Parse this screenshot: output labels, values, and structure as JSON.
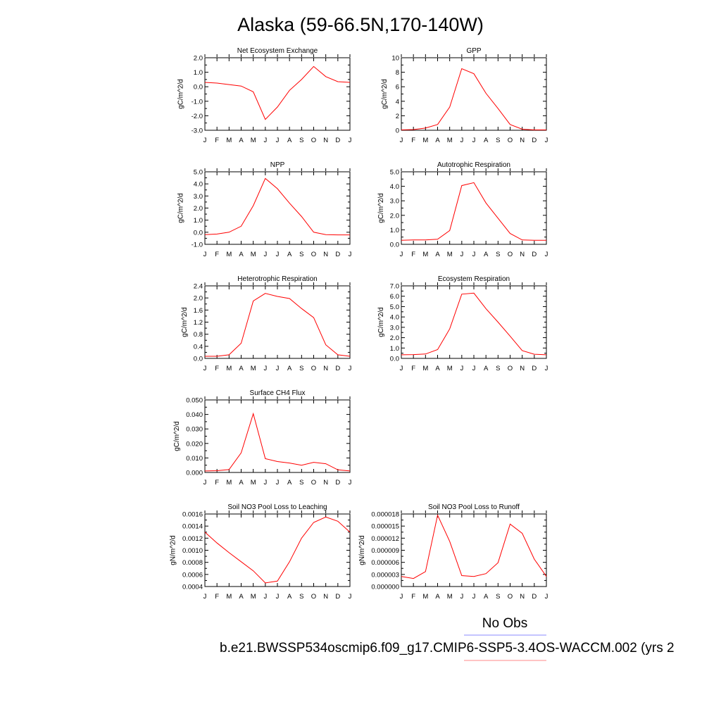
{
  "figure": {
    "title": "Alaska (59-66.5N,170-140W)",
    "legend": {
      "obs_label": "No Obs",
      "obs_color": "#8888ff",
      "case_label": "b.e21.BWSSP534oscmip6.f09_g17.CMIP6-SSP5-3.4OS-WACCM.002 (yrs 2",
      "case_color": "#ff8888"
    },
    "series_color": "#ff0000"
  },
  "chart_data": [
    {
      "type": "line",
      "title": "Net Ecosystem Exchange",
      "ylabel": "gC/m^2/d",
      "x": [
        "J",
        "F",
        "M",
        "A",
        "M",
        "J",
        "J",
        "A",
        "S",
        "O",
        "N",
        "D",
        "J"
      ],
      "values": [
        0.3,
        0.25,
        0.15,
        0.05,
        -0.35,
        -2.25,
        -1.4,
        -0.25,
        0.5,
        1.4,
        0.7,
        0.35,
        0.3
      ],
      "ylim": [
        -3.0,
        2.0
      ],
      "yticks": [
        "2.0",
        "1.0",
        "0.0",
        "-1.0",
        "-2.0",
        "-3.0"
      ]
    },
    {
      "type": "line",
      "title": "GPP",
      "ylabel": "gC/m^2/d",
      "x": [
        "J",
        "F",
        "M",
        "A",
        "M",
        "J",
        "J",
        "A",
        "S",
        "O",
        "N",
        "D",
        "J"
      ],
      "values": [
        0.05,
        0.1,
        0.3,
        0.8,
        3.2,
        8.5,
        7.8,
        5.1,
        3.0,
        0.8,
        0.15,
        0.05,
        0.05
      ],
      "ylim": [
        0,
        10
      ],
      "yticks": [
        "10",
        "8",
        "6",
        "4",
        "2",
        "0"
      ]
    },
    {
      "type": "line",
      "title": "NPP",
      "ylabel": "gC/m^2/d",
      "x": [
        "J",
        "F",
        "M",
        "A",
        "M",
        "J",
        "J",
        "A",
        "S",
        "O",
        "N",
        "D",
        "J"
      ],
      "values": [
        -0.2,
        -0.15,
        0.0,
        0.5,
        2.2,
        4.45,
        3.6,
        2.4,
        1.3,
        0.0,
        -0.2,
        -0.22,
        -0.22
      ],
      "ylim": [
        -1.0,
        5.0
      ],
      "yticks": [
        "5.0",
        "4.0",
        "3.0",
        "2.0",
        "1.0",
        "0.0",
        "-1.0"
      ]
    },
    {
      "type": "line",
      "title": "Autotrophic Respiration",
      "ylabel": "gC/m^2/d",
      "x": [
        "J",
        "F",
        "M",
        "A",
        "M",
        "J",
        "J",
        "A",
        "S",
        "O",
        "N",
        "D",
        "J"
      ],
      "values": [
        0.28,
        0.3,
        0.3,
        0.35,
        0.95,
        4.05,
        4.25,
        2.85,
        1.8,
        0.75,
        0.3,
        0.28,
        0.28
      ],
      "ylim": [
        0,
        5.0
      ],
      "yticks": [
        "5.0",
        "4.0",
        "3.0",
        "2.0",
        "1.0",
        "0.0"
      ]
    },
    {
      "type": "line",
      "title": "Heterotrophic Respiration",
      "ylabel": "gC/m^2/d",
      "x": [
        "J",
        "F",
        "M",
        "A",
        "M",
        "J",
        "J",
        "A",
        "S",
        "O",
        "N",
        "D",
        "J"
      ],
      "values": [
        0.07,
        0.07,
        0.12,
        0.5,
        1.9,
        2.15,
        2.05,
        1.98,
        1.65,
        1.35,
        0.45,
        0.12,
        0.07
      ],
      "ylim": [
        0,
        2.4
      ],
      "yticks": [
        "2.4",
        "2.0",
        "1.6",
        "1.2",
        "0.8",
        "0.4",
        "0.0"
      ]
    },
    {
      "type": "line",
      "title": "Ecosystem Respiration",
      "ylabel": "gC/m^2/d",
      "x": [
        "J",
        "F",
        "M",
        "A",
        "M",
        "J",
        "J",
        "A",
        "S",
        "O",
        "N",
        "D",
        "J"
      ],
      "values": [
        0.35,
        0.37,
        0.42,
        0.85,
        2.85,
        6.2,
        6.3,
        4.8,
        3.5,
        2.15,
        0.75,
        0.4,
        0.35
      ],
      "ylim": [
        0,
        7.0
      ],
      "yticks": [
        "7.0",
        "6.0",
        "5.0",
        "4.0",
        "3.0",
        "2.0",
        "1.0",
        "0.0"
      ]
    },
    {
      "type": "line",
      "title": "Surface CH4 Flux",
      "ylabel": "gC/m^2/d",
      "x": [
        "J",
        "F",
        "M",
        "A",
        "M",
        "J",
        "J",
        "A",
        "S",
        "O",
        "N",
        "D",
        "J"
      ],
      "values": [
        0.001,
        0.0012,
        0.002,
        0.0135,
        0.0405,
        0.0095,
        0.0075,
        0.0065,
        0.005,
        0.007,
        0.006,
        0.0018,
        0.001
      ],
      "ylim": [
        0,
        0.05
      ],
      "yticks": [
        "0.050",
        "0.040",
        "0.030",
        "0.020",
        "0.010",
        "0.000"
      ]
    },
    {
      "type": "line",
      "title": "Soil NO3 Pool Loss to Leaching",
      "ylabel": "gN/m^2/d",
      "x": [
        "J",
        "F",
        "M",
        "A",
        "M",
        "J",
        "J",
        "A",
        "S",
        "O",
        "N",
        "D",
        "J"
      ],
      "values": [
        0.0013,
        0.00112,
        0.00096,
        0.00081,
        0.00066,
        0.00046,
        0.00049,
        0.00081,
        0.0012,
        0.00146,
        0.00155,
        0.00148,
        0.0013
      ],
      "ylim": [
        0.0004,
        0.0016
      ],
      "yticks": [
        "0.0016",
        "0.0014",
        "0.0012",
        "0.0010",
        "0.0008",
        "0.0006",
        "0.0004"
      ]
    },
    {
      "type": "line",
      "title": "Soil NO3 Pool Loss to Runoff",
      "ylabel": "gN/m^2/d",
      "x": [
        "J",
        "F",
        "M",
        "A",
        "M",
        "J",
        "J",
        "A",
        "S",
        "O",
        "N",
        "D",
        "J"
      ],
      "values": [
        2.5e-06,
        2e-06,
        3.7e-06,
        1.77e-05,
        1.12e-05,
        2.7e-06,
        2.5e-06,
        3.2e-06,
        5.9e-06,
        1.55e-05,
        1.32e-05,
        6.8e-06,
        2.5e-06
      ],
      "ylim": [
        0,
        1.8e-05
      ],
      "yticks": [
        "0.000018",
        "0.000015",
        "0.000012",
        "0.000009",
        "0.000006",
        "0.000003",
        "0.000000"
      ]
    }
  ]
}
